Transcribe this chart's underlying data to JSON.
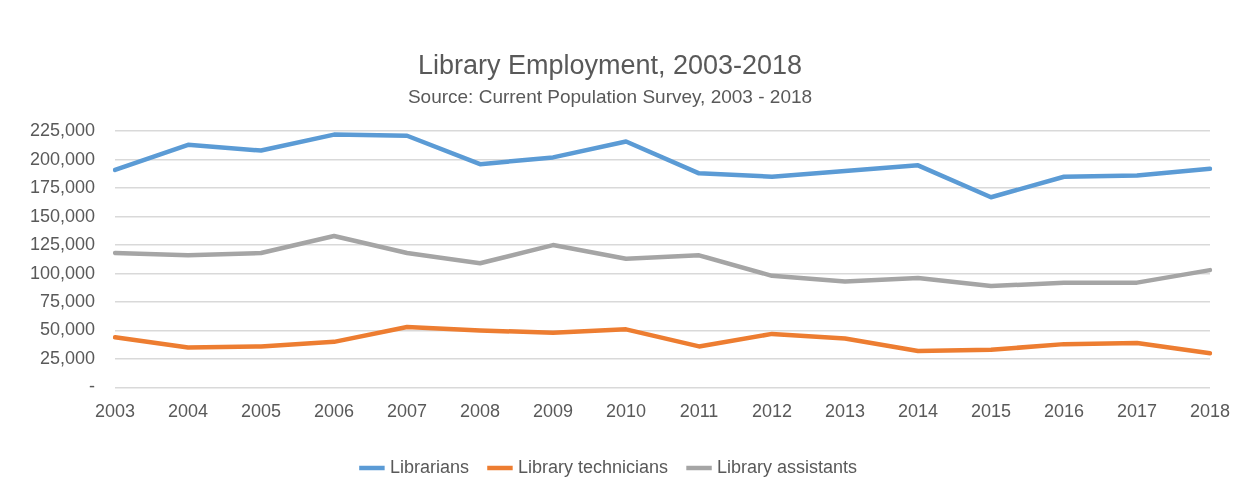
{
  "chart_data": {
    "type": "line",
    "title": "Library Employment, 2003-2018",
    "subtitle": "Source: Current Population Survey, 2003 - 2018",
    "categories": [
      "2003",
      "2004",
      "2005",
      "2006",
      "2007",
      "2008",
      "2009",
      "2010",
      "2011",
      "2012",
      "2013",
      "2014",
      "2015",
      "2016",
      "2017",
      "2018"
    ],
    "series": [
      {
        "name": "Librarians",
        "color": "#5b9bd5",
        "values": [
          191000,
          213000,
          208000,
          222000,
          221000,
          196000,
          202000,
          216000,
          188000,
          185000,
          190000,
          195000,
          167000,
          185000,
          186000,
          192000
        ]
      },
      {
        "name": "Library technicians",
        "color": "#ed7d31",
        "values": [
          44000,
          35000,
          36000,
          40000,
          53000,
          50000,
          48000,
          51000,
          36000,
          47000,
          43000,
          32000,
          33000,
          38000,
          39000,
          30000
        ]
      },
      {
        "name": "Library assistants",
        "color": "#a5a5a5",
        "values": [
          118000,
          116000,
          118000,
          133000,
          118000,
          109000,
          125000,
          113000,
          116000,
          98000,
          93000,
          96000,
          89000,
          92000,
          92000,
          103000
        ]
      }
    ],
    "ylim": [
      0,
      225000
    ],
    "yticks": [
      {
        "value": 0,
        "label": "-"
      },
      {
        "value": 25000,
        "label": "25,000"
      },
      {
        "value": 50000,
        "label": "50,000"
      },
      {
        "value": 75000,
        "label": "75,000"
      },
      {
        "value": 100000,
        "label": "100,000"
      },
      {
        "value": 125000,
        "label": "125,000"
      },
      {
        "value": 150000,
        "label": "150,000"
      },
      {
        "value": 175000,
        "label": "175,000"
      },
      {
        "value": 200000,
        "label": "200,000"
      },
      {
        "value": 225000,
        "label": "225,000"
      }
    ],
    "grid": "y",
    "legend": "bottom",
    "marker": "none",
    "line_style": "solid"
  }
}
